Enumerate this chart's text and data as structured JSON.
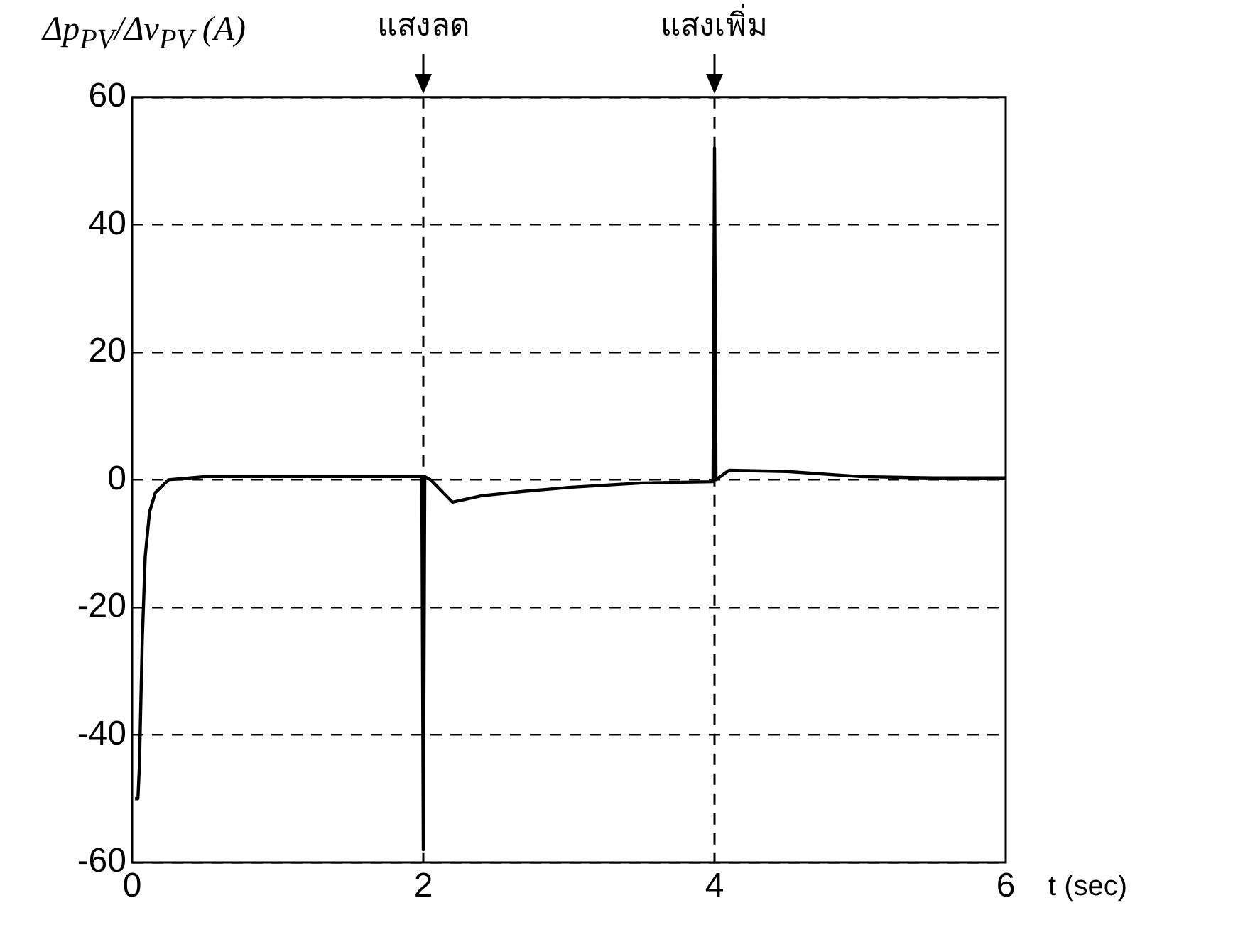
{
  "chart_data": {
    "type": "line",
    "ylabel": "Δp$_{PV}$/Δv$_{PV}$ (A)",
    "xlabel": "t (sec)",
    "xlim": [
      0,
      6
    ],
    "xticks": [
      0,
      2,
      4,
      6
    ],
    "ylim": [
      -60,
      60
    ],
    "yticks": [
      -60,
      -40,
      -20,
      0,
      20,
      40,
      60
    ],
    "grid": "y",
    "series": [
      {
        "color": "#000000",
        "x": [
          0.02,
          0.04,
          0.05,
          0.07,
          0.09,
          0.12,
          0.16,
          0.25,
          0.5,
          1.0,
          1.5,
          1.99,
          2.0,
          2.01,
          2.05,
          2.2,
          2.4,
          2.7,
          3.0,
          3.5,
          3.99,
          4.0,
          4.01,
          4.1,
          4.5,
          5.0,
          5.5,
          6.0
        ],
        "values": [
          -50,
          -50,
          -45,
          -25,
          -12,
          -5,
          -2,
          0,
          0.5,
          0.5,
          0.5,
          0.5,
          -58,
          0.5,
          0,
          -3.5,
          -2.5,
          -1.8,
          -1.2,
          -0.5,
          -0.3,
          52,
          0,
          1.5,
          1.3,
          0.5,
          0.3,
          0.3
        ]
      }
    ],
    "ref_lines": [
      {
        "axis": "x",
        "value": 2,
        "label": "แสงลด",
        "line_style": "dashed",
        "color": "#000000"
      },
      {
        "axis": "x",
        "value": 4,
        "label": "แสงเพิ่ม",
        "line_style": "dashed",
        "color": "#000000"
      }
    ],
    "marker": "none",
    "line_style": "solid",
    "legend": false
  }
}
